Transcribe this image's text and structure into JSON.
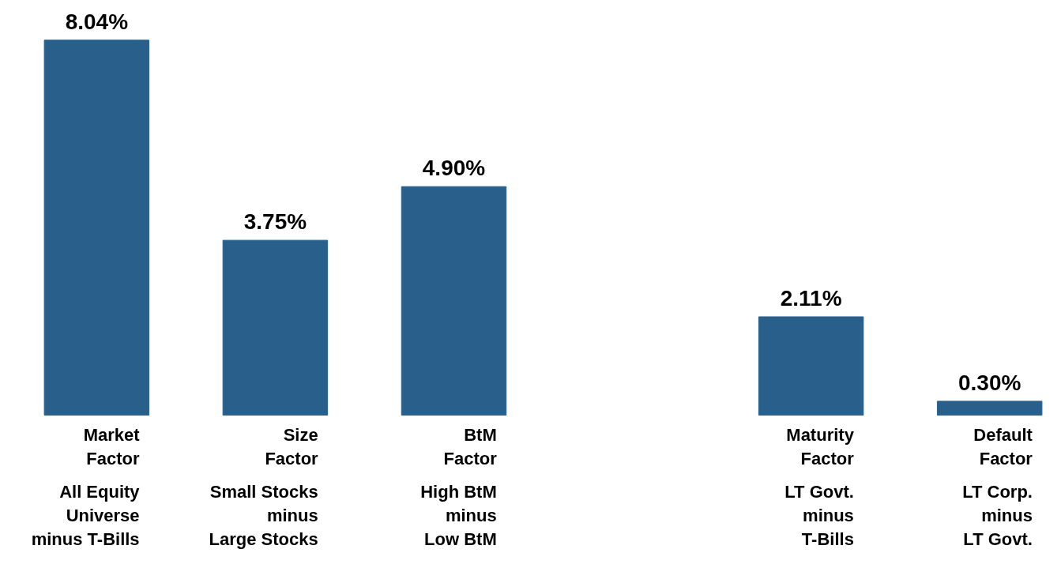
{
  "chart_data": {
    "type": "bar",
    "data_labels": true,
    "color": "#29608b",
    "categories": [
      "Market\nFactor",
      "Size\nFactor",
      "BtM\nFactor",
      null,
      "Maturity\nFactor",
      "Default\nFactor"
    ],
    "values": [
      8.04,
      3.75,
      4.9,
      null,
      2.11,
      0.3
    ],
    "value_labels": [
      "8.04%",
      "3.75%",
      "4.90%",
      null,
      "2.11%",
      "0.30%"
    ],
    "annotations": [
      "All Equity\nUniverse\nminus T-Bills",
      "Small Stocks\nminus\nLarge Stocks",
      "High BtM\nminus\nLow BtM",
      "LT Govt.\nminus\nT-Bills",
      "LT Corp.\nminus\nLT Govt."
    ]
  }
}
